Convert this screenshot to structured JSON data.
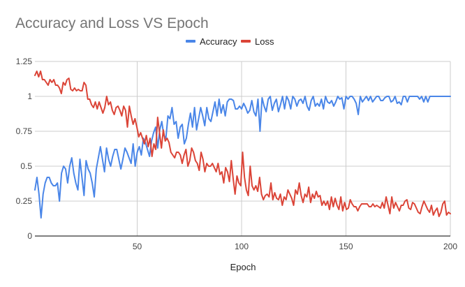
{
  "chart_data": {
    "type": "line",
    "title": "Accuracy and Loss VS Epoch",
    "xlabel": "Epoch",
    "ylabel": "",
    "xlim": [
      1,
      200
    ],
    "ylim": [
      0,
      1.25
    ],
    "x_ticks": [
      50,
      100,
      150,
      200
    ],
    "y_ticks": [
      0,
      0.25,
      0.5,
      0.75,
      1,
      1.25
    ],
    "x_tick_labels": [
      "50",
      "100",
      "150",
      "200"
    ],
    "y_tick_labels": [
      "0",
      "0.25",
      "0.5",
      "0.75",
      "1",
      "1.25"
    ],
    "grid": true,
    "legend_position": "top-center",
    "series": [
      {
        "name": "Accuracy",
        "color": "#4a86e8",
        "values": [
          0.33,
          0.42,
          0.3,
          0.13,
          0.3,
          0.38,
          0.42,
          0.42,
          0.38,
          0.36,
          0.36,
          0.38,
          0.25,
          0.45,
          0.5,
          0.48,
          0.38,
          0.5,
          0.56,
          0.45,
          0.38,
          0.33,
          0.55,
          0.42,
          0.29,
          0.54,
          0.48,
          0.45,
          0.38,
          0.28,
          0.48,
          0.56,
          0.64,
          0.55,
          0.46,
          0.63,
          0.55,
          0.5,
          0.57,
          0.62,
          0.62,
          0.55,
          0.48,
          0.55,
          0.63,
          0.6,
          0.56,
          0.52,
          0.66,
          0.5,
          0.6,
          0.64,
          0.58,
          0.7,
          0.67,
          0.62,
          0.57,
          0.68,
          0.74,
          0.78,
          0.63,
          0.76,
          0.82,
          0.72,
          0.7,
          0.86,
          0.84,
          0.92,
          0.8,
          0.82,
          0.7,
          0.78,
          0.8,
          0.66,
          0.7,
          0.8,
          0.88,
          0.78,
          0.92,
          0.76,
          0.84,
          0.92,
          0.86,
          0.79,
          0.92,
          0.84,
          0.82,
          0.89,
          0.96,
          0.86,
          0.98,
          0.88,
          0.94,
          0.86,
          0.96,
          0.98,
          0.98,
          0.97,
          0.91,
          0.91,
          0.93,
          0.91,
          0.95,
          0.92,
          0.88,
          0.9,
          0.97,
          0.89,
          0.86,
          0.98,
          0.75,
          0.99,
          0.93,
          0.89,
          0.98,
          1.0,
          0.9,
          0.95,
          0.98,
          0.89,
          0.94,
          1.0,
          0.91,
          1.0,
          0.97,
          0.91,
          1.0,
          0.98,
          0.93,
          0.97,
          0.98,
          0.95,
          1.0,
          0.93,
          0.9,
          0.97,
          1.0,
          0.93,
          0.95,
          0.93,
          0.98,
          0.91,
          1.0,
          0.96,
          0.95,
          0.97,
          0.93,
          0.96,
          1.0,
          0.98,
          0.99,
          0.91,
          1.0,
          0.98,
          1.0,
          1.0,
          0.98,
          0.95,
          0.87,
          1.0,
          0.96,
          0.98,
          1.0,
          0.97,
          1.0,
          0.96,
          0.98,
          1.0,
          1.0,
          0.97,
          0.97,
          0.99,
          1.0,
          1.0,
          0.96,
          0.97,
          1.0,
          0.95,
          0.96,
          0.94,
          1.0,
          1.0,
          0.96,
          1.0,
          1.0,
          1.0,
          1.0,
          1.0,
          0.98,
          1.0,
          0.96,
          1.0,
          0.96,
          1.0,
          1.0,
          1.0,
          1.0,
          1.0,
          1.0,
          1.0,
          1.0,
          1.0,
          1.0,
          1.0
        ]
      },
      {
        "name": "Loss",
        "color": "#db4437",
        "values": [
          1.15,
          1.18,
          1.14,
          1.18,
          1.12,
          1.12,
          1.1,
          1.08,
          1.12,
          1.1,
          1.12,
          1.08,
          1.08,
          1.06,
          1.02,
          1.1,
          1.08,
          1.12,
          1.13,
          1.05,
          1.04,
          1.06,
          1.04,
          1.05,
          1.04,
          1.04,
          1.1,
          1.08,
          0.98,
          0.98,
          0.94,
          0.92,
          0.96,
          0.91,
          0.96,
          0.92,
          0.88,
          0.92,
          1.0,
          0.94,
          0.96,
          0.9,
          0.87,
          0.92,
          0.93,
          0.9,
          0.86,
          0.93,
          0.9,
          0.78,
          0.93,
          0.86,
          0.8,
          0.84,
          0.78,
          0.71,
          0.74,
          0.7,
          0.66,
          0.72,
          0.64,
          0.7,
          0.57,
          0.66,
          0.62,
          0.85,
          0.74,
          0.63,
          0.76,
          0.68,
          0.7,
          0.67,
          0.6,
          0.58,
          0.56,
          0.6,
          0.6,
          0.58,
          0.52,
          0.58,
          0.62,
          0.5,
          0.54,
          0.63,
          0.6,
          0.54,
          0.52,
          0.47,
          0.6,
          0.55,
          0.46,
          0.52,
          0.5,
          0.5,
          0.52,
          0.49,
          0.46,
          0.52,
          0.44,
          0.46,
          0.38,
          0.49,
          0.46,
          0.39,
          0.54,
          0.41,
          0.3,
          0.43,
          0.38,
          0.36,
          0.6,
          0.42,
          0.33,
          0.29,
          0.5,
          0.36,
          0.33,
          0.36,
          0.32,
          0.42,
          0.3,
          0.26,
          0.29,
          0.3,
          0.28,
          0.38,
          0.26,
          0.31,
          0.27,
          0.26,
          0.3,
          0.22,
          0.28,
          0.26,
          0.33,
          0.3,
          0.27,
          0.22,
          0.33,
          0.3,
          0.38,
          0.29,
          0.24,
          0.3,
          0.28,
          0.35,
          0.24,
          0.3,
          0.27,
          0.32,
          0.28,
          0.29,
          0.22,
          0.25,
          0.22,
          0.25,
          0.19,
          0.28,
          0.21,
          0.27,
          0.22,
          0.19,
          0.28,
          0.18,
          0.24,
          0.19,
          0.2,
          0.26,
          0.23,
          0.21,
          0.21,
          0.18,
          0.21,
          0.23,
          0.23,
          0.23,
          0.23,
          0.21,
          0.21,
          0.23,
          0.21,
          0.22,
          0.21,
          0.2,
          0.24,
          0.2,
          0.28,
          0.22,
          0.16,
          0.28,
          0.2,
          0.24,
          0.21,
          0.18,
          0.22,
          0.22,
          0.25,
          0.26,
          0.2,
          0.19,
          0.24,
          0.23,
          0.2,
          0.17,
          0.16,
          0.21,
          0.25,
          0.22,
          0.19,
          0.17,
          0.22,
          0.15,
          0.18,
          0.2,
          0.14,
          0.17,
          0.23,
          0.25,
          0.15,
          0.17,
          0.16
        ]
      }
    ]
  }
}
